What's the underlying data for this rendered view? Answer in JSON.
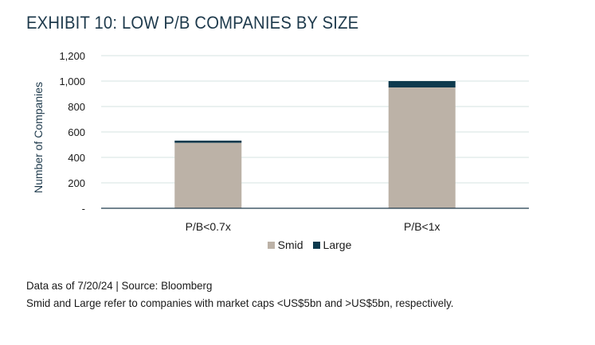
{
  "title": "EXHIBIT 10: LOW P/B COMPANIES BY SIZE",
  "notes": {
    "line1": "Data as of 7/20/24 | Source: Bloomberg",
    "line2": "Smid and Large refer to companies with market caps <US$5bn and >US$5bn, respectively."
  },
  "chart_data": {
    "type": "bar",
    "stacked": true,
    "title": "",
    "xlabel": "",
    "ylabel": "Number of Companies",
    "ylim": [
      0,
      1200
    ],
    "yticks": [
      0,
      200,
      400,
      600,
      800,
      1000,
      1200
    ],
    "ytick_labels": [
      "-",
      "200",
      "400",
      "600",
      "800",
      "1,000",
      "1,200"
    ],
    "categories": [
      "P/B<0.7x",
      "P/B<1x"
    ],
    "series": [
      {
        "name": "Smid",
        "values": [
          515,
          950
        ],
        "color": "#bcb2a7"
      },
      {
        "name": "Large",
        "values": [
          17,
          50
        ],
        "color": "#0d3a4e"
      }
    ],
    "grid": true,
    "legend_position": "bottom"
  }
}
